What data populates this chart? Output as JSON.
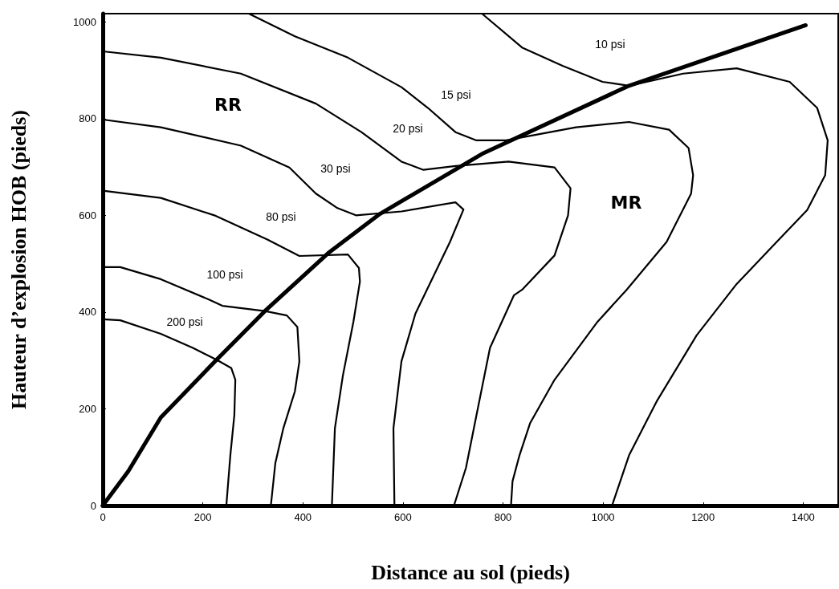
{
  "chart_data": {
    "type": "line",
    "xlabel": "Distance au sol (pieds)",
    "ylabel": "Hauteur d’explosion HOB (pieds)",
    "xlim": [
      0,
      1470
    ],
    "ylim": [
      0,
      1017
    ],
    "xticks": [
      0,
      200,
      400,
      600,
      800,
      1000,
      1200,
      1400
    ],
    "yticks": [
      0,
      200,
      400,
      600,
      800,
      1000
    ],
    "grid": false,
    "marker": "none",
    "line_style": "solid",
    "series": [
      {
        "color": "#000000",
        "x": [
          0,
          51,
          116,
          228,
          324,
          453,
          554,
          758,
          1052,
          1405
        ],
        "values": [
          0,
          71,
          182,
          302,
          402,
          524,
          603,
          727,
          868,
          993
        ]
      },
      {
        "name": "200 psi",
        "color": "#000000",
        "x": [
          0,
          35,
          116,
          180,
          228,
          257,
          265,
          263,
          255,
          247
        ],
        "values": [
          385,
          383,
          355,
          326,
          301,
          284,
          260,
          187,
          104,
          0
        ]
      },
      {
        "name": "100 psi",
        "color": "#000000",
        "x": [
          0,
          35,
          116,
          212,
          239,
          324,
          368,
          389,
          393,
          384,
          361,
          345,
          336
        ],
        "values": [
          493,
          493,
          468,
          426,
          413,
          402,
          393,
          369,
          298,
          236,
          160,
          88,
          0
        ]
      },
      {
        "name": "80 psi",
        "color": "#000000",
        "x": [
          0,
          116,
          223,
          329,
          393,
          490,
          512,
          514,
          501,
          480,
          464,
          458
        ],
        "values": [
          651,
          636,
          600,
          550,
          516,
          519,
          491,
          463,
          380,
          269,
          160,
          0
        ]
      },
      {
        "name": "30 psi",
        "color": "#000000",
        "x": [
          0,
          116,
          276,
          373,
          426,
          469,
          506,
          597,
          705,
          721,
          694,
          625,
          597,
          581,
          583
        ],
        "values": [
          798,
          782,
          744,
          699,
          645,
          615,
          600,
          608,
          627,
          612,
          545,
          397,
          298,
          160,
          0
        ]
      },
      {
        "name": "20 psi",
        "color": "#000000",
        "x": [
          0,
          116,
          276,
          426,
          517,
          597,
          641,
          705,
          811,
          903,
          935,
          930,
          903,
          838,
          822,
          774,
          747,
          726,
          702
        ],
        "values": [
          939,
          926,
          893,
          831,
          772,
          711,
          694,
          702,
          711,
          699,
          656,
          600,
          517,
          446,
          435,
          326,
          187,
          78,
          0
        ]
      },
      {
        "name": "15 psi",
        "color": "#000000",
        "x": [
          292,
          384,
          490,
          597,
          650,
          705,
          747,
          806,
          946,
          1052,
          1132,
          1171,
          1180,
          1176,
          1127,
          1047,
          989,
          903,
          854,
          833,
          819,
          816
        ],
        "values": [
          1017,
          970,
          926,
          865,
          822,
          772,
          755,
          755,
          782,
          793,
          777,
          739,
          683,
          645,
          545,
          446,
          380,
          260,
          170,
          104,
          50,
          0
        ]
      },
      {
        "name": "10 psi",
        "color": "#000000",
        "x": [
          758,
          838,
          919,
          999,
          1052,
          1160,
          1267,
          1373,
          1428,
          1449,
          1444,
          1408,
          1347,
          1267,
          1187,
          1107,
          1052,
          1018
        ],
        "values": [
          1017,
          947,
          909,
          876,
          868,
          893,
          904,
          876,
          822,
          755,
          683,
          611,
          545,
          458,
          352,
          215,
          104,
          0
        ]
      }
    ],
    "annotations": [
      "RR",
      "MR"
    ]
  }
}
